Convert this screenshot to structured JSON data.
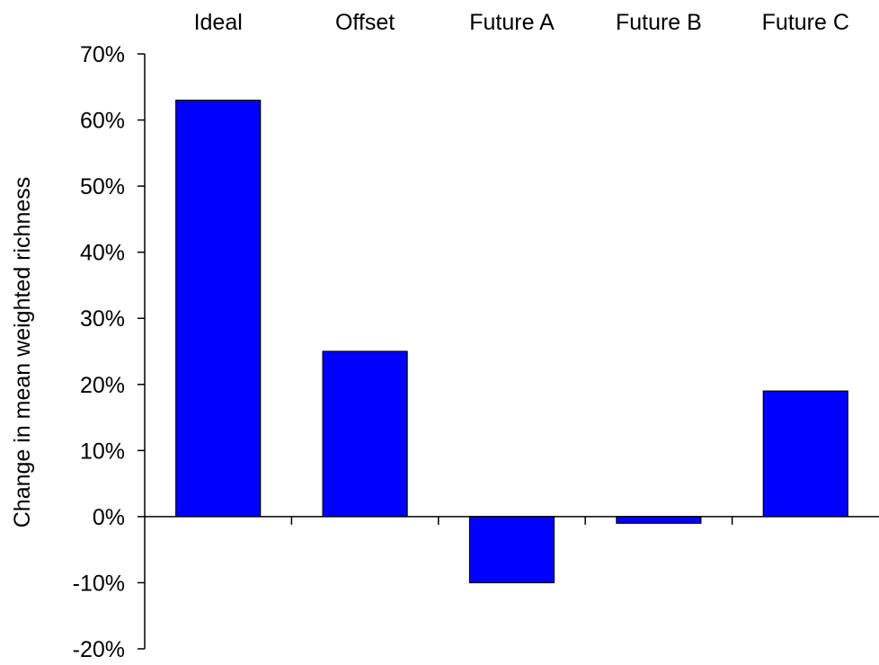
{
  "chart_data": {
    "type": "bar",
    "categories": [
      "Ideal",
      "Offset",
      "Future A",
      "Future B",
      "Future C"
    ],
    "values": [
      63,
      25,
      -10,
      -1,
      19
    ],
    "value_unit": "%",
    "title": "",
    "xlabel": "",
    "ylabel": "Change in mean weighted richness",
    "ylim": [
      -20,
      70
    ],
    "yticks": [
      "-20%",
      "-10%",
      "0%",
      "10%",
      "20%",
      "30%",
      "40%",
      "50%",
      "60%",
      "70%"
    ],
    "category_labels_position": "top",
    "grid": false,
    "legend": "none",
    "bar_color": "#0000FF",
    "bar_edge_color": "#000000"
  }
}
